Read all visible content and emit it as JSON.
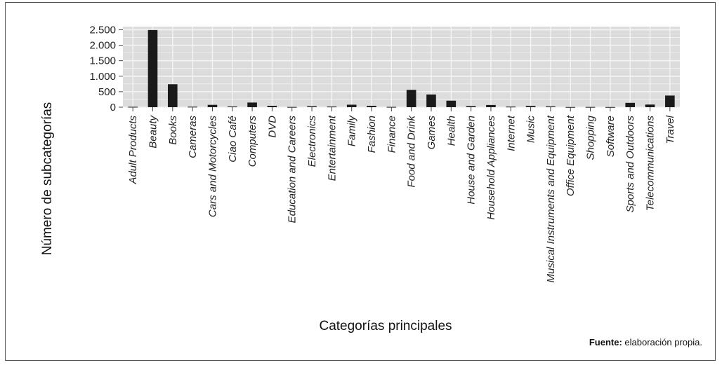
{
  "colors": {
    "panel": "#dcdcdc",
    "grid": "#f4f4f4",
    "bar": "#1a1a1a",
    "frame": "#555555"
  },
  "source": {
    "label": "Fuente:",
    "text": "elaboración propia."
  },
  "chart_data": {
    "type": "bar",
    "xlabel": "Categorías principales",
    "ylabel": "Número de subcategorías",
    "ylim": [
      0,
      2600
    ],
    "yticks": [
      0,
      500,
      1000,
      1500,
      2000,
      2500
    ],
    "ytick_labels": [
      "0",
      "500",
      "1.000",
      "1.500",
      "2.000",
      "2.500"
    ],
    "grid": true,
    "categories": [
      "Adult Products",
      "Beauty",
      "Books",
      "Cameras",
      "Cars and Motorcycles",
      "Ciao Café",
      "Computers",
      "DVD",
      "Education and Careers",
      "Electronics",
      "Entertainment",
      "Family",
      "Fashion",
      "Finance",
      "Food and Drink",
      "Games",
      "Health",
      "House and Garden",
      "Household Appliances",
      "Internet",
      "Music",
      "Musical Instruments and Equipment",
      "Office Equipment",
      "Shopping",
      "Software",
      "Sports and Outdoors",
      "Telecommunications",
      "Travel"
    ],
    "values": [
      12,
      2490,
      740,
      15,
      75,
      22,
      150,
      45,
      8,
      30,
      20,
      80,
      45,
      10,
      560,
      410,
      210,
      35,
      70,
      18,
      40,
      25,
      6,
      8,
      6,
      140,
      85,
      375
    ]
  }
}
